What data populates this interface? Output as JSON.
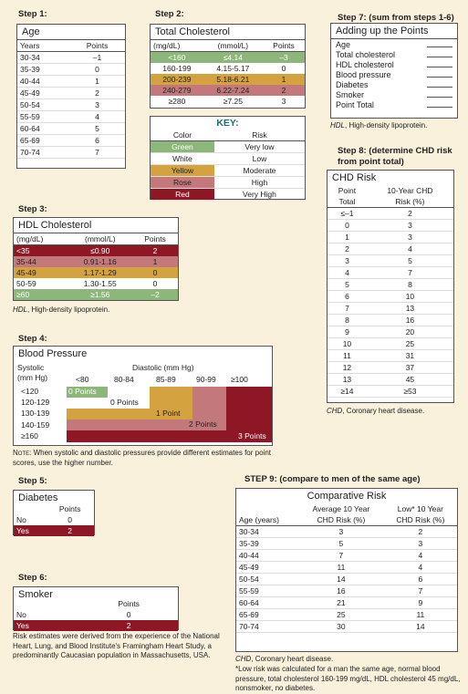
{
  "step1": {
    "label": "Step 1:",
    "title": "Age",
    "col1": "Years",
    "col2": "Points",
    "rows": [
      [
        "30-34",
        "–1"
      ],
      [
        "35-39",
        "0"
      ],
      [
        "40-44",
        "1"
      ],
      [
        "45-49",
        "2"
      ],
      [
        "50-54",
        "3"
      ],
      [
        "55-59",
        "4"
      ],
      [
        "60-64",
        "5"
      ],
      [
        "65-69",
        "6"
      ],
      [
        "70-74",
        "7"
      ]
    ]
  },
  "step2": {
    "label": "Step 2:",
    "title": "Total Cholesterol",
    "col1": "(mg/dL)",
    "col2": "(mmol/L)",
    "col3": "Points",
    "rows": [
      [
        "<160",
        "≤4.14",
        "–3",
        "g"
      ],
      [
        "160-199",
        "4.15-5.17",
        "0",
        "w"
      ],
      [
        "200-239",
        "5.18-6.21",
        "1",
        "y"
      ],
      [
        "240-279",
        "6.22-7.24",
        "2",
        "ro"
      ],
      [
        "≥280",
        "≥7.25",
        "3",
        "w"
      ]
    ]
  },
  "key": {
    "title": "KEY:",
    "col1": "Color",
    "col2": "Risk",
    "rows": [
      [
        "Green",
        "Very low",
        "g"
      ],
      [
        "White",
        "Low",
        "w"
      ],
      [
        "Yellow",
        "Moderate",
        "y"
      ],
      [
        "Rose",
        "High",
        "ro"
      ],
      [
        "Red",
        "Very High",
        "rd"
      ]
    ]
  },
  "step3": {
    "label": "Step 3:",
    "title": "HDL Cholesterol",
    "col1": "(mg/dL)",
    "col2": "(mmol/L)",
    "col3": "Points",
    "rows": [
      [
        "<35",
        "≤0.90",
        "2",
        "rd"
      ],
      [
        "35-44",
        "0.91-1.16",
        "1",
        "ro"
      ],
      [
        "45-49",
        "1.17-1.29",
        "0",
        "y"
      ],
      [
        "50-59",
        "1.30-1.55",
        "0",
        "w"
      ],
      [
        "≥60",
        "≥1.56",
        "–2",
        "g"
      ]
    ],
    "note_abbr": "HDL",
    "note_text": ", High-density lipoprotein."
  },
  "step4": {
    "label": "Step 4:",
    "title": "Blood Pressure",
    "systolic_label_1": "Systolic",
    "systolic_label_2": "(mm Hg)",
    "diastolic_label": "Diastolic (mm Hg)",
    "diastolic_cols": [
      "<80",
      "80-84",
      "85-89",
      "90-99",
      "≥100"
    ],
    "systolic_rows": [
      "<120",
      "120-129",
      "130-139",
      "140-159",
      "≥160"
    ],
    "points": [
      "0 Points",
      "0 Points",
      "1 Point",
      "2 Points",
      "3 Points"
    ],
    "note_lead": "Note:",
    "note": " When systolic and diastolic pressures provide different estimates for point scores, use the higher number."
  },
  "step5": {
    "label": "Step 5:",
    "title": "Diabetes",
    "col": "Points",
    "rows": [
      [
        "No",
        "0",
        "w"
      ],
      [
        "Yes",
        "2",
        "rd"
      ]
    ]
  },
  "step6": {
    "label": "Step 6:",
    "title": "Smoker",
    "col": "Points",
    "rows": [
      [
        "No",
        "0",
        "w"
      ],
      [
        "Yes",
        "2",
        "rd"
      ]
    ],
    "footnote": "Risk estimates were derived from the experience of the National Heart, Lung, and Blood Institute's Framingham Heart Study, a predominantly Caucasian population in Massachusetts, USA."
  },
  "step7": {
    "label": "Step 7: (sum from steps 1-6)",
    "title": "Adding up the Points",
    "items": [
      "Age",
      "Total cholesterol",
      "HDL cholesterol",
      "Blood pressure",
      "Diabetes",
      "Smoker",
      "Point Total"
    ],
    "note_abbr": "HDL",
    "note_text": ", High-density lipoprotein."
  },
  "step8": {
    "label_1": "Step 8: (determine CHD risk",
    "label_2": "from point total)",
    "title": "CHD Risk",
    "col1_1": "Point",
    "col1_2": "Total",
    "col2_1": "10-Year CHD",
    "col2_2": "Risk (%)",
    "rows": [
      [
        "≤–1",
        "2"
      ],
      [
        "0",
        "3"
      ],
      [
        "1",
        "3"
      ],
      [
        "2",
        "4"
      ],
      [
        "3",
        "5"
      ],
      [
        "4",
        "7"
      ],
      [
        "5",
        "8"
      ],
      [
        "6",
        "10"
      ],
      [
        "7",
        "13"
      ],
      [
        "8",
        "16"
      ],
      [
        "9",
        "20"
      ],
      [
        "10",
        "25"
      ],
      [
        "11",
        "31"
      ],
      [
        "12",
        "37"
      ],
      [
        "13",
        "45"
      ],
      [
        "≥14",
        "≥53"
      ]
    ],
    "note_abbr": "CHD",
    "note_text": ", Coronary heart disease."
  },
  "step9": {
    "label": "STEP 9: (compare to men of the same age)",
    "title": "Comparative Risk",
    "col1": "Age (years)",
    "col2_1": "Average 10 Year",
    "col2_2": "CHD Risk (%)",
    "col3_1": "Low* 10 Year",
    "col3_2": "CHD Risk (%)",
    "rows": [
      [
        "30-34",
        "3",
        "2"
      ],
      [
        "35-39",
        "5",
        "3"
      ],
      [
        "40-44",
        "7",
        "4"
      ],
      [
        "45-49",
        "11",
        "4"
      ],
      [
        "50-54",
        "14",
        "6"
      ],
      [
        "55-59",
        "16",
        "7"
      ],
      [
        "60-64",
        "21",
        "9"
      ],
      [
        "65-69",
        "25",
        "11"
      ],
      [
        "70-74",
        "30",
        "14"
      ]
    ],
    "note_abbr": "CHD",
    "note_text": ", Coronary heart disease.",
    "footnote": "*Low risk was calculated for a man the same age, normal blood pressure, total cholesterol 160-199 mg/dL, HDL cholesterol 45 mg/dL, nonsmoker, no diabetes."
  }
}
